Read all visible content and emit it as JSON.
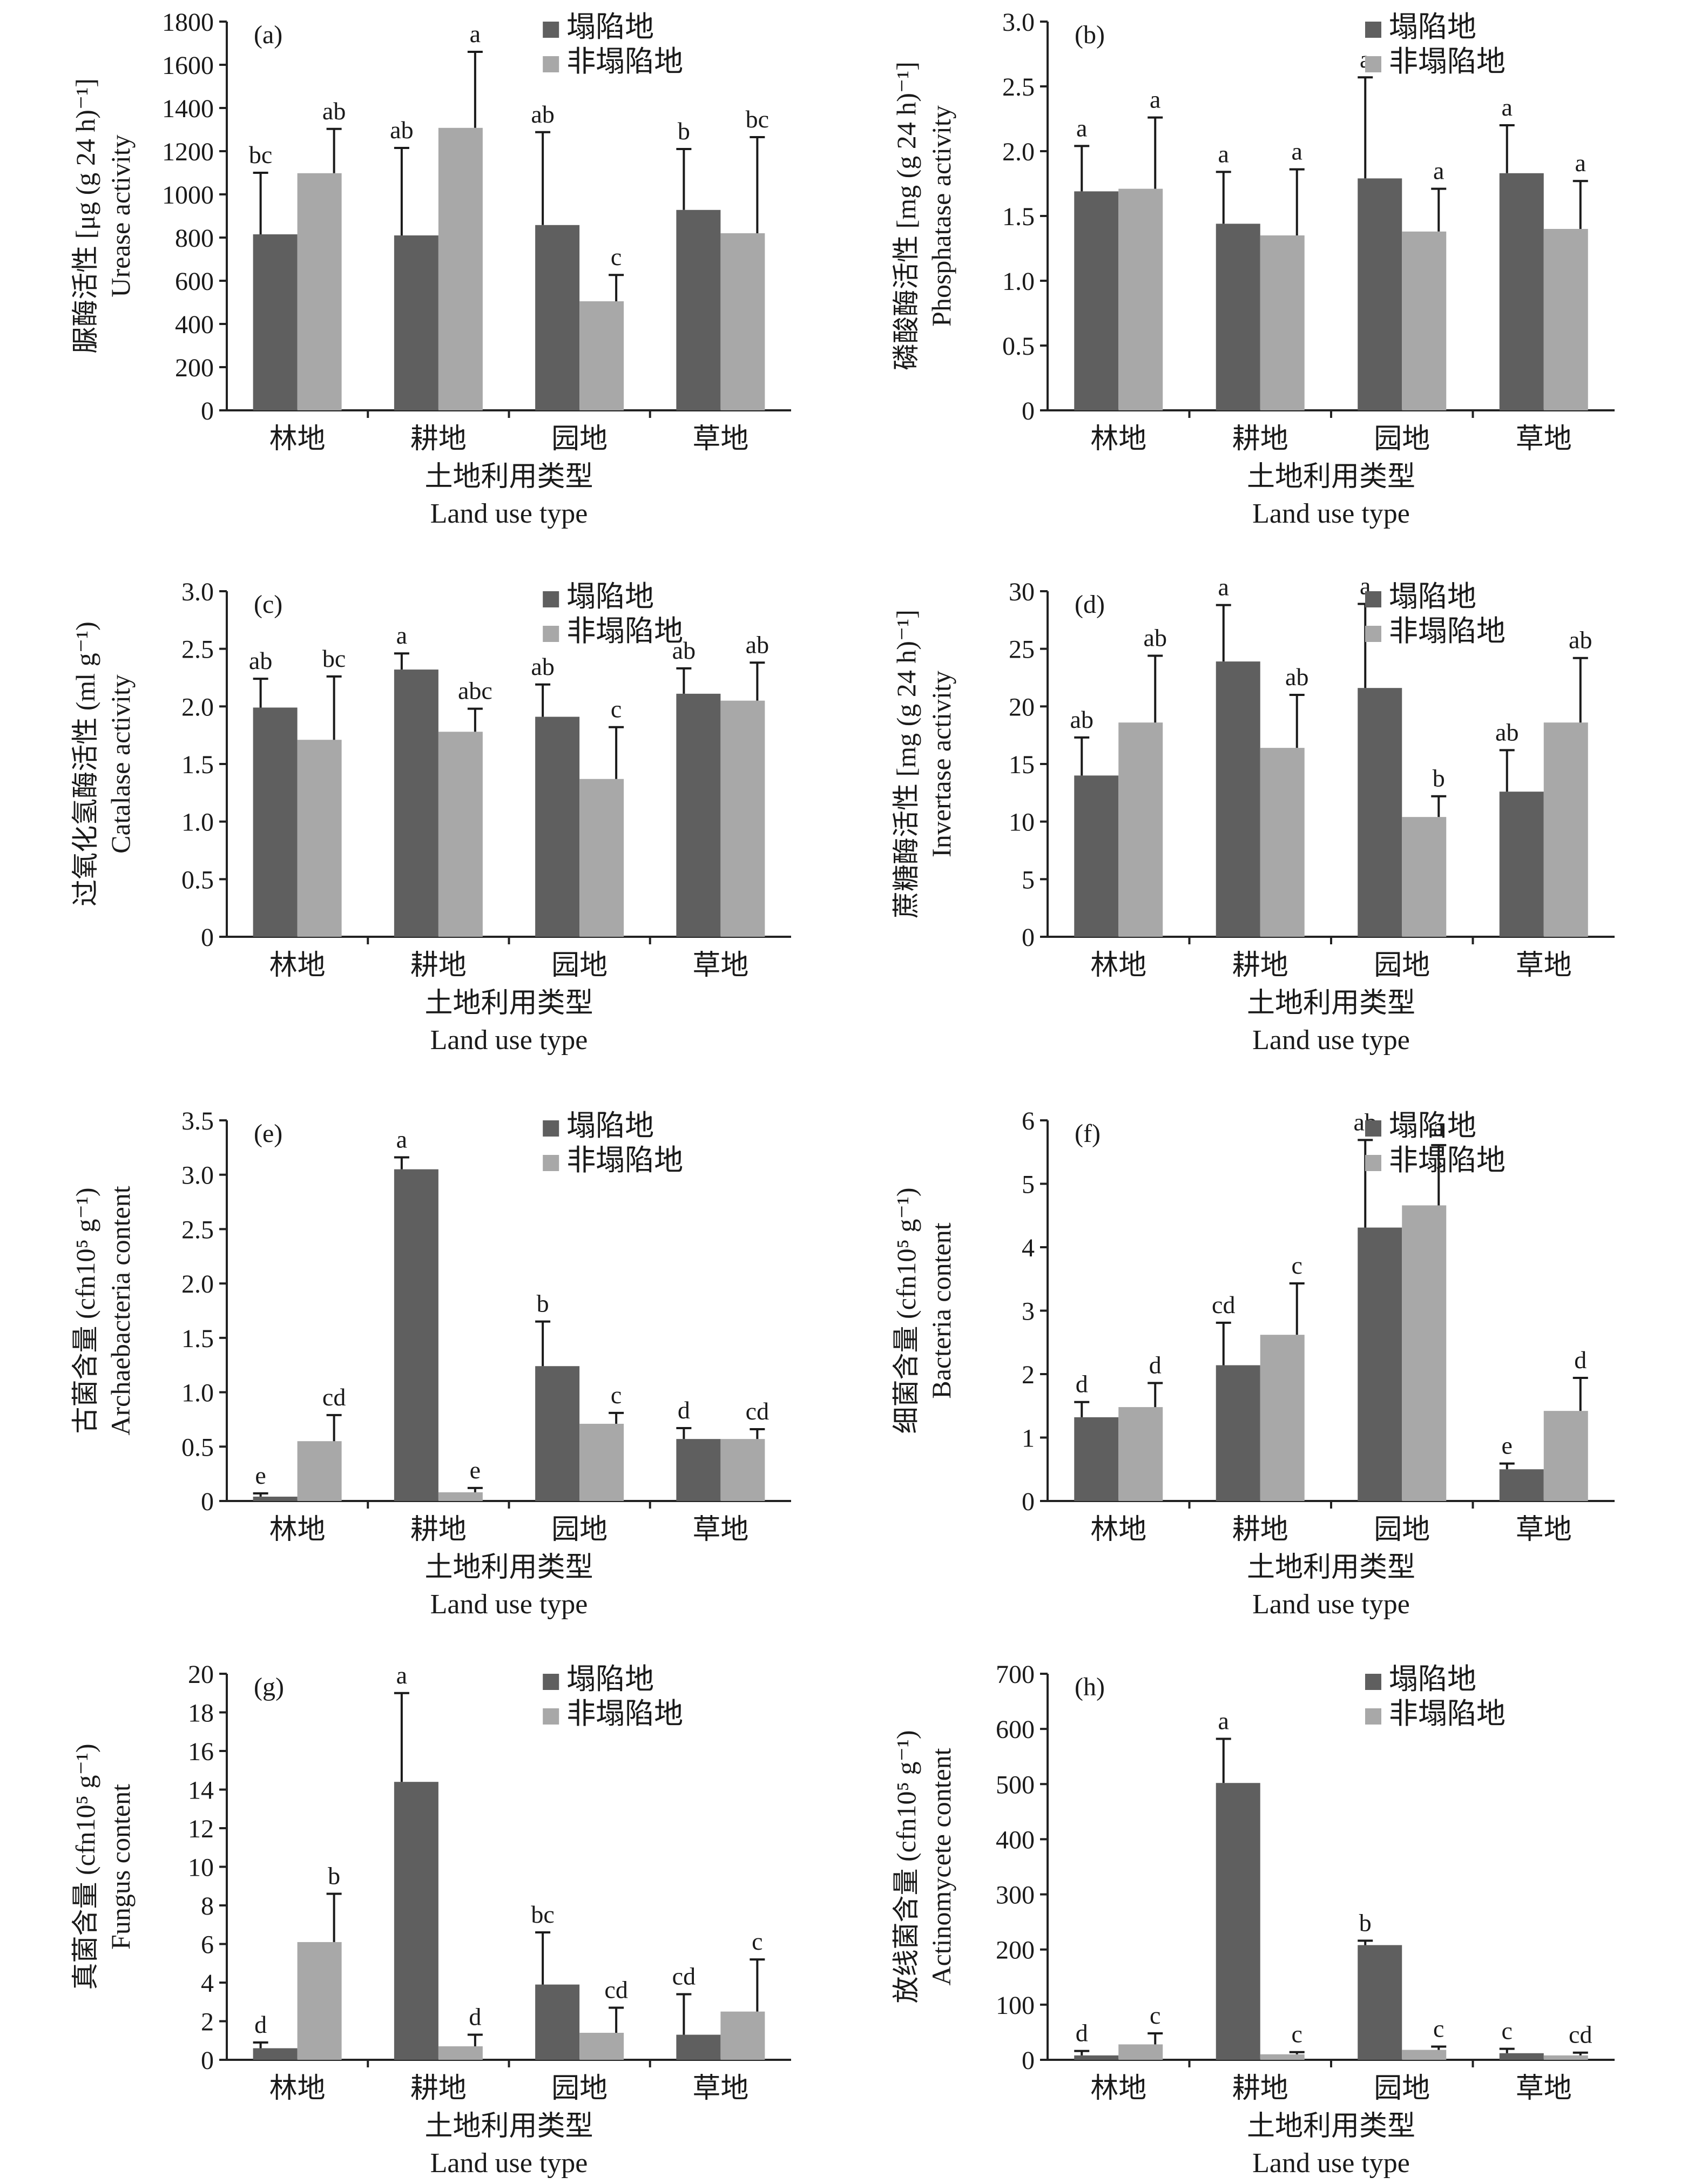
{
  "legend_labels": [
    "塌陷地",
    "非塌陷地"
  ],
  "xlabel_cn": "土地利用类型",
  "xlabel_en": "Land use type",
  "colors": {
    "collapsed": "#5f5f5f",
    "non_collapsed": "#a8a8a8",
    "axis": "#222222"
  },
  "chart_data": [
    {
      "panel": "(a)",
      "type": "bar",
      "ylabel_cn": "脲酶活性 [μg (g 24 h)⁻¹]",
      "ylabel_en": "Urease activity",
      "categories": [
        "林地",
        "耕地",
        "园地",
        "草地"
      ],
      "ylim": [
        0,
        1800
      ],
      "yticks": [
        0,
        200,
        400,
        600,
        800,
        1000,
        1200,
        1400,
        1600,
        1800
      ],
      "tick_decimals": 0,
      "series": [
        {
          "name": "塌陷地",
          "values": [
            815,
            810,
            858,
            928
          ],
          "errors": [
            285,
            405,
            430,
            282
          ],
          "letters": [
            "bc",
            "ab",
            "ab",
            "b"
          ]
        },
        {
          "name": "非塌陷地",
          "values": [
            1098,
            1308,
            505,
            820
          ],
          "errors": [
            205,
            352,
            122,
            445
          ],
          "letters": [
            "ab",
            "a",
            "c",
            "bc"
          ]
        }
      ]
    },
    {
      "panel": "(b)",
      "type": "bar",
      "ylabel_cn": "磷酸酶活性 [mg (g 24 h)⁻¹]",
      "ylabel_en": "Phosphatase activity",
      "categories": [
        "林地",
        "耕地",
        "园地",
        "草地"
      ],
      "ylim": [
        0,
        3.0
      ],
      "yticks": [
        0,
        0.5,
        1.0,
        1.5,
        2.0,
        2.5,
        3.0
      ],
      "tick_decimals": 1,
      "series": [
        {
          "name": "塌陷地",
          "values": [
            1.69,
            1.44,
            1.79,
            1.83
          ],
          "errors": [
            0.35,
            0.4,
            0.78,
            0.37
          ],
          "letters": [
            "a",
            "a",
            "a",
            "a"
          ]
        },
        {
          "name": "非塌陷地",
          "values": [
            1.71,
            1.35,
            1.38,
            1.4
          ],
          "errors": [
            0.55,
            0.51,
            0.33,
            0.37
          ],
          "letters": [
            "a",
            "a",
            "a",
            "a"
          ]
        }
      ]
    },
    {
      "panel": "(c)",
      "type": "bar",
      "ylabel_cn": "过氧化氢酶活性 (ml g⁻¹)",
      "ylabel_en": "Catalase activity",
      "categories": [
        "林地",
        "耕地",
        "园地",
        "草地"
      ],
      "ylim": [
        0,
        3.0
      ],
      "yticks": [
        0,
        0.5,
        1.0,
        1.5,
        2.0,
        2.5,
        3.0
      ],
      "tick_decimals": 1,
      "series": [
        {
          "name": "塌陷地",
          "values": [
            1.99,
            2.32,
            1.91,
            2.11
          ],
          "errors": [
            0.25,
            0.14,
            0.28,
            0.22
          ],
          "letters": [
            "ab",
            "a",
            "ab",
            "ab"
          ]
        },
        {
          "name": "非塌陷地",
          "values": [
            1.71,
            1.78,
            1.37,
            2.05
          ],
          "errors": [
            0.55,
            0.2,
            0.45,
            0.33
          ],
          "letters": [
            "bc",
            "abc",
            "c",
            "ab"
          ]
        }
      ]
    },
    {
      "panel": "(d)",
      "type": "bar",
      "ylabel_cn": "蔗糖酶活性 [mg (g 24 h)⁻¹]",
      "ylabel_en": "Invertase activity",
      "categories": [
        "林地",
        "耕地",
        "园地",
        "草地"
      ],
      "ylim": [
        0,
        30
      ],
      "yticks": [
        0,
        5,
        10,
        15,
        20,
        25,
        30
      ],
      "tick_decimals": 0,
      "series": [
        {
          "name": "塌陷地",
          "values": [
            14.0,
            23.9,
            21.6,
            12.6
          ],
          "errors": [
            3.3,
            4.9,
            7.3,
            3.6
          ],
          "letters": [
            "ab",
            "a",
            "a",
            "ab"
          ]
        },
        {
          "name": "非塌陷地",
          "values": [
            18.6,
            16.4,
            10.4,
            18.6
          ],
          "errors": [
            5.8,
            4.6,
            1.8,
            5.6
          ],
          "letters": [
            "ab",
            "ab",
            "b",
            "ab"
          ]
        }
      ]
    },
    {
      "panel": "(e)",
      "type": "bar",
      "ylabel_cn": "古菌含量 (cfn10⁵ g⁻¹)",
      "ylabel_en": "Archaebacteria content",
      "categories": [
        "林地",
        "耕地",
        "园地",
        "草地"
      ],
      "ylim": [
        0,
        3.5
      ],
      "yticks": [
        0,
        0.5,
        1.0,
        1.5,
        2.0,
        2.5,
        3.0,
        3.5
      ],
      "tick_decimals": 1,
      "series": [
        {
          "name": "塌陷地",
          "values": [
            0.04,
            3.05,
            1.24,
            0.57
          ],
          "errors": [
            0.03,
            0.11,
            0.41,
            0.1
          ],
          "letters": [
            "e",
            "a",
            "b",
            "d"
          ]
        },
        {
          "name": "非塌陷地",
          "values": [
            0.55,
            0.08,
            0.71,
            0.57
          ],
          "errors": [
            0.24,
            0.04,
            0.1,
            0.09
          ],
          "letters": [
            "cd",
            "e",
            "c",
            "cd"
          ]
        }
      ]
    },
    {
      "panel": "(f)",
      "type": "bar",
      "ylabel_cn": "细菌含量 (cfn10⁵ g⁻¹)",
      "ylabel_en": "Bacteria content",
      "categories": [
        "林地",
        "耕地",
        "园地",
        "草地"
      ],
      "ylim": [
        0,
        6
      ],
      "yticks": [
        0,
        1,
        2,
        3,
        4,
        5,
        6
      ],
      "tick_decimals": 0,
      "series": [
        {
          "name": "塌陷地",
          "values": [
            1.32,
            2.14,
            4.31,
            0.5
          ],
          "errors": [
            0.24,
            0.67,
            1.38,
            0.09
          ],
          "letters": [
            "d",
            "cd",
            "ab",
            "e"
          ]
        },
        {
          "name": "非塌陷地",
          "values": [
            1.48,
            2.62,
            4.66,
            1.42
          ],
          "errors": [
            0.38,
            0.81,
            0.95,
            0.52
          ],
          "letters": [
            "d",
            "c",
            "a",
            "d"
          ]
        }
      ]
    },
    {
      "panel": "(g)",
      "type": "bar",
      "ylabel_cn": "真菌含量 (cfn10⁵ g⁻¹)",
      "ylabel_en": "Fungus content",
      "categories": [
        "林地",
        "耕地",
        "园地",
        "草地"
      ],
      "ylim": [
        0,
        20
      ],
      "yticks": [
        0,
        2,
        4,
        6,
        8,
        10,
        12,
        14,
        16,
        18,
        20
      ],
      "tick_decimals": 0,
      "series": [
        {
          "name": "塌陷地",
          "values": [
            0.6,
            14.4,
            3.9,
            1.3
          ],
          "errors": [
            0.3,
            4.6,
            2.7,
            2.1
          ],
          "letters": [
            "d",
            "a",
            "bc",
            "cd"
          ]
        },
        {
          "name": "非塌陷地",
          "values": [
            6.1,
            0.7,
            1.4,
            2.5
          ],
          "errors": [
            2.5,
            0.6,
            1.3,
            2.7
          ],
          "letters": [
            "b",
            "d",
            "cd",
            "c"
          ]
        }
      ]
    },
    {
      "panel": "(h)",
      "type": "bar",
      "ylabel_cn": "放线菌含量 (cfn10⁵ g⁻¹)",
      "ylabel_en": "Actinomycete content",
      "categories": [
        "林地",
        "耕地",
        "园地",
        "草地"
      ],
      "ylim": [
        0,
        700
      ],
      "yticks": [
        0,
        100,
        200,
        300,
        400,
        500,
        600,
        700
      ],
      "tick_decimals": 0,
      "series": [
        {
          "name": "塌陷地",
          "values": [
            8,
            502,
            208,
            12
          ],
          "errors": [
            8,
            80,
            8,
            8
          ],
          "letters": [
            "d",
            "a",
            "b",
            "c"
          ]
        },
        {
          "name": "非塌陷地",
          "values": [
            28,
            10,
            18,
            8
          ],
          "errors": [
            20,
            4,
            6,
            5
          ],
          "letters": [
            "c",
            "c",
            "c",
            "cd"
          ]
        }
      ]
    }
  ]
}
